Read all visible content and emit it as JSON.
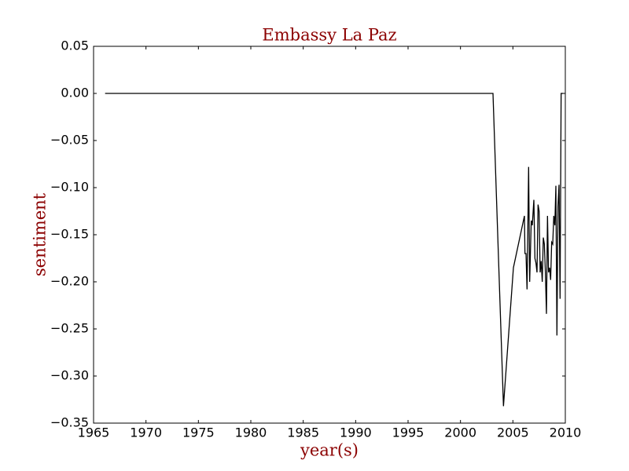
{
  "chart_data": {
    "type": "line",
    "title": "Embassy La Paz",
    "x_label": "year(s)",
    "y_label": "sentiment",
    "series": [
      {
        "color": "#000000",
        "x": [
          1966.1,
          2003.1,
          2004.1,
          2005.05,
          2006.1,
          2006.15,
          2006.25,
          2006.35,
          2006.5,
          2006.6,
          2006.75,
          2006.85,
          2007.0,
          2007.1,
          2007.2,
          2007.3,
          2007.4,
          2007.5,
          2007.6,
          2007.7,
          2007.8,
          2007.9,
          2008.0,
          2008.1,
          2008.2,
          2008.3,
          2008.4,
          2008.5,
          2008.6,
          2008.7,
          2008.8,
          2008.9,
          2009.0,
          2009.1,
          2009.2,
          2009.3,
          2009.4,
          2009.5,
          2009.6,
          2009.8
        ],
        "values": [
          0.0,
          0.0,
          -0.332,
          -0.185,
          -0.13,
          -0.17,
          -0.17,
          -0.208,
          -0.078,
          -0.2,
          -0.135,
          -0.14,
          -0.113,
          -0.175,
          -0.18,
          -0.19,
          -0.118,
          -0.125,
          -0.19,
          -0.178,
          -0.2,
          -0.153,
          -0.16,
          -0.19,
          -0.234,
          -0.13,
          -0.19,
          -0.185,
          -0.198,
          -0.158,
          -0.16,
          -0.13,
          -0.14,
          -0.098,
          -0.257,
          -0.12,
          -0.097,
          -0.218,
          0.0,
          0.0
        ]
      }
    ],
    "xlim": [
      1965,
      2010
    ],
    "xticks": [
      1965,
      1970,
      1975,
      1980,
      1985,
      1990,
      1995,
      2000,
      2005,
      2010
    ],
    "ylim": [
      -0.35,
      0.05
    ],
    "yticks": [
      {
        "value": -0.35,
        "label": "−0.35"
      },
      {
        "value": -0.3,
        "label": "−0.30"
      },
      {
        "value": -0.25,
        "label": "−0.25"
      },
      {
        "value": -0.2,
        "label": "−0.20"
      },
      {
        "value": -0.15,
        "label": "−0.15"
      },
      {
        "value": -0.1,
        "label": "−0.10"
      },
      {
        "value": -0.05,
        "label": "−0.05"
      },
      {
        "value": 0,
        "label": "0.00"
      },
      0.05
    ],
    "title_color": "#8b0000"
  }
}
